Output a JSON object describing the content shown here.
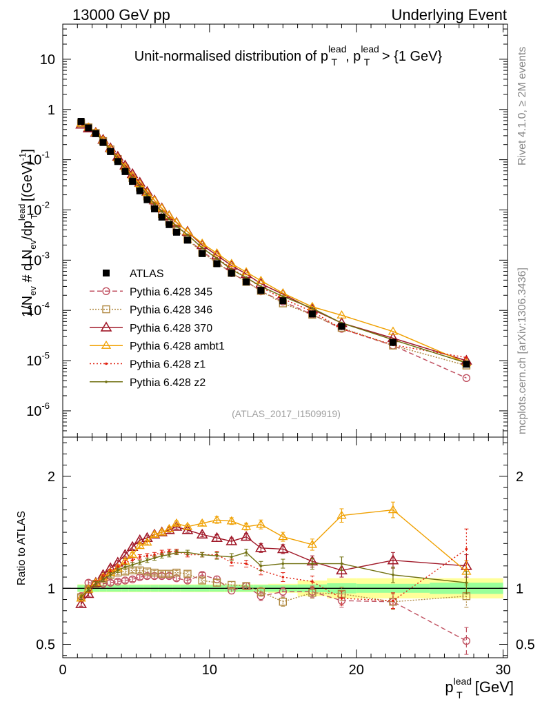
{
  "header": {
    "energy": "13000 GeV pp",
    "process": "Underlying Event"
  },
  "side": {
    "rivet": "Rivet 4.1.0, ≥ 2M events",
    "mcplots": "mcplots.cern.ch [arXiv:1306.3436]"
  },
  "colors": {
    "ATLAS": "#000000",
    "p345": "#c05060",
    "p346": "#b08840",
    "p370": "#a01828",
    "ambt1": "#f0a000",
    "z1": "#e02010",
    "z2": "#707010",
    "band_inner": "#99ff99",
    "band_outer": "#ffff99"
  },
  "chart_data": [
    {
      "name": "main",
      "type": "line",
      "title": "Unit-normalised distribution of pT lead, pT lead > {1 GeV}",
      "title_parts": {
        "prefix": "Unit-normalised distribution of p",
        "sup1": "lead",
        "sub1": "T",
        "mid": ", p",
        "sup2": "lead",
        "sub2": "T",
        "suffix": " > {1 GeV}"
      },
      "ylabel": "1/N_ev # d N_ev/dp_T^lead [(GeV)^-1]",
      "ylabel_parts": {
        "a": "1/N",
        "a_sub": "ev",
        "b": " # d N",
        "b_sub": "ev",
        "c": "/dp",
        "c_sup": "lead",
        "c_sub": "T",
        "d": " [(GeV)",
        "d_sup": "-1",
        "e": "]"
      },
      "yscale": "log",
      "ylim": [
        3e-07,
        50
      ],
      "xlim": [
        0,
        30.3
      ],
      "yticks": [
        {
          "v": 1e-06,
          "base": "10",
          "exp": "-6"
        },
        {
          "v": 1e-05,
          "base": "10",
          "exp": "-5"
        },
        {
          "v": 0.0001,
          "base": "10",
          "exp": "-4"
        },
        {
          "v": 0.001,
          "base": "10",
          "exp": "-3"
        },
        {
          "v": 0.01,
          "base": "10",
          "exp": "-2"
        },
        {
          "v": 0.1,
          "base": "10",
          "exp": "-1"
        },
        {
          "v": 1,
          "base": "1",
          "exp": ""
        },
        {
          "v": 10,
          "base": "10",
          "exp": ""
        }
      ],
      "watermark": "(ATLAS_2017_I1509919)",
      "legend_position": "left-center",
      "data": {
        "name": "ATLAS",
        "x": [
          1.25,
          1.75,
          2.25,
          2.75,
          3.25,
          3.75,
          4.25,
          4.75,
          5.25,
          5.75,
          6.25,
          6.75,
          7.25,
          7.75,
          8.5,
          9.5,
          10.5,
          11.5,
          12.5,
          13.5,
          15,
          17,
          19,
          22.5,
          27.5
        ],
        "y": [
          0.58,
          0.43,
          0.33,
          0.22,
          0.145,
          0.092,
          0.058,
          0.037,
          0.024,
          0.016,
          0.0105,
          0.0072,
          0.0051,
          0.0036,
          0.0025,
          0.00135,
          0.00085,
          0.00055,
          0.00037,
          0.00025,
          0.000155,
          8.5e-05,
          4.8e-05,
          2.3e-05,
          8.5e-06
        ]
      },
      "series": [
        {
          "name": "Pythia 6.428 345",
          "color_key": "p345",
          "marker": "circle",
          "dash": "7,4",
          "y": [
            0.55,
            0.45,
            0.34,
            0.23,
            0.155,
            0.098,
            0.063,
            0.041,
            0.027,
            0.018,
            0.0118,
            0.0082,
            0.0057,
            0.0039,
            0.00265,
            0.0015,
            0.00093,
            0.00055,
            0.00038,
            0.00024,
            0.00015,
            8.3e-05,
            4.3e-05,
            2e-05,
            4.5e-06
          ]
        },
        {
          "name": "Pythia 6.428 346",
          "color_key": "p346",
          "marker": "square",
          "dash": "2,2",
          "y": [
            0.53,
            0.44,
            0.34,
            0.235,
            0.16,
            0.103,
            0.067,
            0.043,
            0.028,
            0.0186,
            0.0122,
            0.0083,
            0.0058,
            0.0039,
            0.0026,
            0.00142,
            0.00088,
            0.00056,
            0.00037,
            0.000245,
            0.000138,
            8.2e-05,
            4.5e-05,
            2e-05,
            8e-06
          ]
        },
        {
          "name": "Pythia 6.428 370",
          "color_key": "p370",
          "marker": "triangle",
          "dash": "",
          "y": [
            0.5,
            0.42,
            0.345,
            0.25,
            0.17,
            0.115,
            0.077,
            0.052,
            0.035,
            0.023,
            0.0155,
            0.0108,
            0.0076,
            0.0056,
            0.0037,
            0.002,
            0.00125,
            0.00078,
            0.00053,
            0.00034,
            0.00021,
            0.000105,
            5.6e-05,
            2.8e-05,
            1e-05
          ]
        },
        {
          "name": "Pythia 6.428 ambt1",
          "color_key": "ambt1",
          "marker": "triangle-open",
          "dash": "",
          "y": [
            0.53,
            0.44,
            0.345,
            0.245,
            0.165,
            0.108,
            0.072,
            0.048,
            0.033,
            0.022,
            0.0155,
            0.0108,
            0.0078,
            0.0057,
            0.0037,
            0.00215,
            0.00138,
            0.00085,
            0.00058,
            0.00039,
            0.00022,
            0.000118,
            8e-05,
            3.8e-05,
            9e-06
          ]
        },
        {
          "name": "Pythia 6.428 z1",
          "color_key": "z1",
          "marker": "dot",
          "dash": "2,3",
          "y": [
            0.54,
            0.44,
            0.34,
            0.235,
            0.16,
            0.105,
            0.068,
            0.046,
            0.031,
            0.0205,
            0.0135,
            0.0095,
            0.0068,
            0.0048,
            0.0032,
            0.00175,
            0.0011,
            0.00068,
            0.00045,
            0.00029,
            0.00017,
            9.5e-05,
            4.3e-05,
            2.05e-05,
            1.15e-05
          ]
        },
        {
          "name": "Pythia 6.428 z2",
          "color_key": "z2",
          "marker": "dot",
          "dash": "",
          "y": [
            0.54,
            0.44,
            0.34,
            0.235,
            0.16,
            0.104,
            0.067,
            0.044,
            0.03,
            0.02,
            0.0132,
            0.0093,
            0.0066,
            0.0047,
            0.0032,
            0.00175,
            0.00108,
            0.00065,
            0.00045,
            0.0003,
            0.00019,
            0.00011,
            5.6e-05,
            2.6e-05,
            9e-06
          ]
        }
      ]
    },
    {
      "name": "ratio",
      "type": "line",
      "ylabel": "Ratio to ATLAS",
      "xlabel_parts": {
        "p": "p",
        "sup": "lead",
        "sub": "T",
        "unit": " [GeV]"
      },
      "xlim": [
        0,
        30.3
      ],
      "ylim": [
        0.38,
        2.35
      ],
      "yticks": [
        {
          "v": 0.5,
          "label": "0.5"
        },
        {
          "v": 1,
          "label": "1"
        },
        {
          "v": 2,
          "label": "2"
        }
      ],
      "xticks": [
        {
          "v": 0,
          "label": "0"
        },
        {
          "v": 10,
          "label": "10"
        },
        {
          "v": 20,
          "label": "20"
        },
        {
          "v": 30,
          "label": "30"
        }
      ],
      "bins": [
        [
          1,
          1.5
        ],
        [
          1.5,
          2
        ],
        [
          2,
          2.5
        ],
        [
          2.5,
          3
        ],
        [
          3,
          3.5
        ],
        [
          3.5,
          4
        ],
        [
          4,
          4.5
        ],
        [
          4.5,
          5
        ],
        [
          5,
          5.5
        ],
        [
          5.5,
          6
        ],
        [
          6,
          6.5
        ],
        [
          6.5,
          7
        ],
        [
          7,
          7.5
        ],
        [
          7.5,
          8
        ],
        [
          8,
          9
        ],
        [
          9,
          10
        ],
        [
          10,
          11
        ],
        [
          11,
          12
        ],
        [
          12,
          13
        ],
        [
          13,
          14
        ],
        [
          14,
          16
        ],
        [
          16,
          18
        ],
        [
          18,
          20
        ],
        [
          20,
          25
        ],
        [
          25,
          30
        ]
      ],
      "band_inner": [
        0.03,
        0.03,
        0.03,
        0.03,
        0.03,
        0.03,
        0.03,
        0.03,
        0.03,
        0.03,
        0.03,
        0.03,
        0.03,
        0.03,
        0.03,
        0.03,
        0.03,
        0.03,
        0.03,
        0.03,
        0.03,
        0.035,
        0.045,
        0.04,
        0.05
      ],
      "band_outer": [
        0.035,
        0.035,
        0.035,
        0.035,
        0.035,
        0.035,
        0.035,
        0.035,
        0.035,
        0.035,
        0.035,
        0.035,
        0.035,
        0.035,
        0.035,
        0.035,
        0.035,
        0.035,
        0.035,
        0.035,
        0.04,
        0.07,
        0.09,
        0.09,
        0.09
      ],
      "x": [
        1.25,
        1.75,
        2.25,
        2.75,
        3.25,
        3.75,
        4.25,
        4.75,
        5.25,
        5.75,
        6.25,
        6.75,
        7.25,
        7.75,
        8.5,
        9.5,
        10.5,
        11.5,
        12.5,
        13.5,
        15,
        17,
        19,
        22.5,
        27.5
      ],
      "series": [
        {
          "name": "Pythia 6.428 345",
          "color_key": "p345",
          "marker": "circle",
          "dash": "7,4",
          "y": [
            0.93,
            1.05,
            1.04,
            1.04,
            1.05,
            1.06,
            1.07,
            1.08,
            1.1,
            1.11,
            1.11,
            1.11,
            1.11,
            1.09,
            1.07,
            1.12,
            1.08,
            0.98,
            1.02,
            0.93,
            0.97,
            0.97,
            0.89,
            0.88,
            0.53
          ],
          "err": [
            0.02,
            0.02,
            0.02,
            0.02,
            0.02,
            0.02,
            0.02,
            0.02,
            0.02,
            0.02,
            0.02,
            0.02,
            0.02,
            0.02,
            0.02,
            0.02,
            0.03,
            0.03,
            0.03,
            0.04,
            0.04,
            0.05,
            0.06,
            0.07,
            0.12
          ]
        },
        {
          "name": "Pythia 6.428 346",
          "color_key": "p346",
          "marker": "square",
          "dash": "2,2",
          "y": [
            0.92,
            0.99,
            1.04,
            1.08,
            1.12,
            1.14,
            1.15,
            1.16,
            1.16,
            1.15,
            1.14,
            1.13,
            1.13,
            1.14,
            1.13,
            1.07,
            1.05,
            1.03,
            1.02,
            0.97,
            0.88,
            0.96,
            0.95,
            0.88,
            0.93
          ],
          "err": [
            0.02,
            0.02,
            0.02,
            0.02,
            0.02,
            0.02,
            0.02,
            0.02,
            0.02,
            0.02,
            0.02,
            0.02,
            0.02,
            0.02,
            0.02,
            0.02,
            0.03,
            0.03,
            0.03,
            0.04,
            0.04,
            0.05,
            0.06,
            0.07,
            0.1
          ]
        },
        {
          "name": "Pythia 6.428 370",
          "color_key": "p370",
          "marker": "triangle",
          "dash": "",
          "y": [
            0.86,
            0.95,
            1.05,
            1.12,
            1.18,
            1.23,
            1.3,
            1.37,
            1.43,
            1.45,
            1.48,
            1.5,
            1.52,
            1.55,
            1.52,
            1.48,
            1.45,
            1.42,
            1.46,
            1.36,
            1.35,
            1.24,
            1.16,
            1.25,
            1.2
          ],
          "err": [
            0.02,
            0.02,
            0.02,
            0.02,
            0.02,
            0.02,
            0.02,
            0.02,
            0.02,
            0.02,
            0.02,
            0.02,
            0.02,
            0.02,
            0.02,
            0.02,
            0.03,
            0.03,
            0.03,
            0.04,
            0.04,
            0.05,
            0.06,
            0.07,
            0.1
          ]
        },
        {
          "name": "Pythia 6.428 ambt1",
          "color_key": "ambt1",
          "marker": "triangle-open",
          "dash": "",
          "y": [
            0.91,
            0.99,
            1.05,
            1.1,
            1.14,
            1.18,
            1.24,
            1.3,
            1.38,
            1.41,
            1.48,
            1.5,
            1.53,
            1.58,
            1.55,
            1.58,
            1.61,
            1.6,
            1.55,
            1.57,
            1.46,
            1.39,
            1.65,
            1.7,
            1.15
          ],
          "err": [
            0.02,
            0.02,
            0.02,
            0.02,
            0.02,
            0.02,
            0.02,
            0.02,
            0.02,
            0.02,
            0.02,
            0.02,
            0.02,
            0.02,
            0.02,
            0.02,
            0.03,
            0.03,
            0.03,
            0.04,
            0.04,
            0.05,
            0.06,
            0.07,
            0.1
          ]
        },
        {
          "name": "Pythia 6.428 z1",
          "color_key": "z1",
          "marker": "dot",
          "dash": "2,3",
          "y": [
            0.92,
            0.99,
            1.05,
            1.1,
            1.15,
            1.19,
            1.23,
            1.25,
            1.28,
            1.29,
            1.3,
            1.32,
            1.33,
            1.33,
            1.3,
            1.3,
            1.3,
            1.23,
            1.22,
            1.16,
            1.1,
            1.06,
            0.91,
            0.89,
            1.35
          ],
          "err": [
            0.02,
            0.02,
            0.02,
            0.02,
            0.02,
            0.02,
            0.02,
            0.02,
            0.02,
            0.02,
            0.02,
            0.02,
            0.02,
            0.02,
            0.02,
            0.02,
            0.03,
            0.03,
            0.03,
            0.04,
            0.04,
            0.05,
            0.06,
            0.07,
            0.18
          ]
        },
        {
          "name": "Pythia 6.428 z2",
          "color_key": "z2",
          "marker": "dot",
          "dash": "",
          "y": [
            0.92,
            0.99,
            1.04,
            1.08,
            1.12,
            1.16,
            1.19,
            1.21,
            1.23,
            1.25,
            1.27,
            1.29,
            1.3,
            1.32,
            1.32,
            1.3,
            1.29,
            1.28,
            1.32,
            1.2,
            1.22,
            1.22,
            1.22,
            1.12,
            1.05
          ],
          "err": [
            0.02,
            0.02,
            0.02,
            0.02,
            0.02,
            0.02,
            0.02,
            0.02,
            0.02,
            0.02,
            0.02,
            0.02,
            0.02,
            0.02,
            0.02,
            0.02,
            0.03,
            0.03,
            0.03,
            0.04,
            0.04,
            0.05,
            0.06,
            0.07,
            0.1
          ]
        }
      ]
    }
  ]
}
